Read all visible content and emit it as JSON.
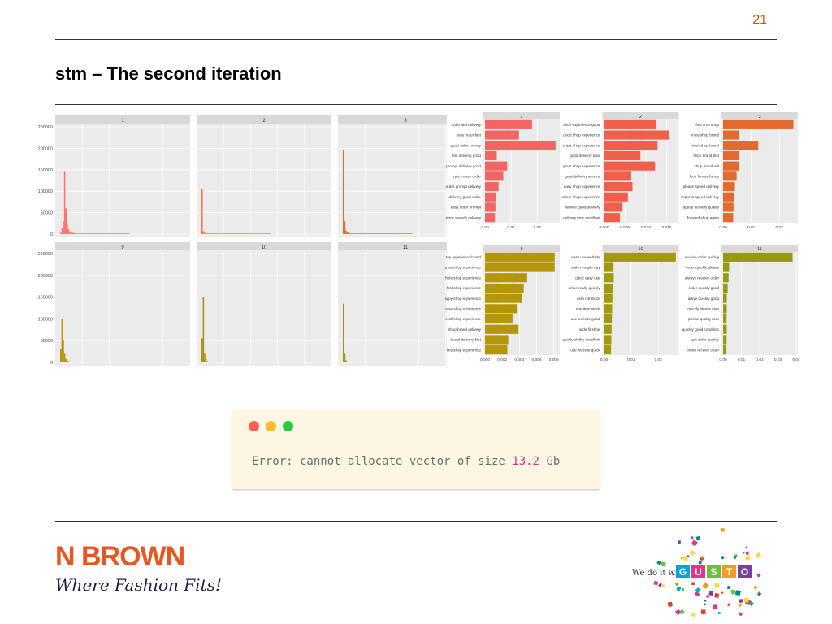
{
  "slide": {
    "number": "21",
    "title": "stm – The second iteration"
  },
  "histograms": {
    "y_ticks": [
      250000,
      200000,
      150000,
      100000,
      50000,
      0
    ],
    "panels": [
      {
        "label": "1",
        "color": "#f8766d",
        "heights": [
          3000,
          15000,
          30000,
          145000,
          60000,
          25000,
          12000,
          6000,
          4000,
          3000,
          2500,
          2000
        ]
      },
      {
        "label": "2",
        "color": "#f37c57",
        "heights": [
          105000,
          7000,
          3000,
          2000,
          1500,
          1500
        ]
      },
      {
        "label": "3",
        "color": "#e8692e",
        "heights": [
          195000,
          30000,
          8000,
          4000,
          3000,
          2000
        ]
      },
      {
        "label": "9",
        "color": "#b7960b",
        "heights": [
          30000,
          100000,
          50000,
          20000,
          8000,
          4000,
          3000,
          2000
        ]
      },
      {
        "label": "10",
        "color": "#a79412",
        "heights": [
          55000,
          150000,
          20000,
          8000,
          3000,
          2000
        ]
      },
      {
        "label": "11",
        "color": "#9b9a10",
        "heights": [
          135000,
          20000,
          5000,
          2000,
          1500
        ]
      }
    ]
  },
  "term_charts": [
    {
      "label": "1",
      "color": "#f46463",
      "xlim": [
        0,
        0.028
      ],
      "ticks": [
        "0.00",
        "0.01",
        "0.02"
      ],
      "tick_values": [
        0,
        0.01,
        0.02
      ],
      "terms": [
        "order fast delivery",
        "easy order fast",
        "good value money",
        "fast delivery good",
        "prompt delivery good",
        "quick easy order",
        "order prompt delivery",
        "delivery good value",
        "easy order prompt",
        "price speedy delivery"
      ],
      "values": [
        0.018,
        0.013,
        0.027,
        0.0045,
        0.0085,
        0.007,
        0.0052,
        0.0043,
        0.004,
        0.0038
      ]
    },
    {
      "label": "2",
      "color": "#ef5f4c",
      "xlim": [
        0,
        0.0175
      ],
      "ticks": [
        "0.000",
        "0.005",
        "0.010",
        "0.015"
      ],
      "tick_values": [
        0,
        0.005,
        0.01,
        0.015
      ],
      "terms": [
        "shop experience good",
        "good shop experience",
        "enjoy shop experience",
        "good delivery time",
        "great shop experience",
        "good delivery service",
        "easy shop experience",
        "online shop experience",
        "service good delivery",
        "delivery time excellent"
      ],
      "values": [
        0.0125,
        0.0155,
        0.0128,
        0.0087,
        0.0122,
        0.0065,
        0.0068,
        0.0057,
        0.0044,
        0.0038
      ]
    },
    {
      "label": "3",
      "color": "#e36a2c",
      "xlim": [
        0,
        0.026
      ],
      "ticks": [
        "0.00",
        "0.01",
        "0.02"
      ],
      "tick_values": [
        0,
        0.01,
        0.02
      ],
      "terms": [
        "first time shop",
        "enjoy shop brand",
        "time shop brand",
        "shop brand first",
        "shop brand will",
        "look forward shop",
        "please speed delivery",
        "impress speed delivery",
        "speed delivery quality",
        "forward shop again"
      ],
      "values": [
        0.025,
        0.0055,
        0.0125,
        0.0058,
        0.0055,
        0.0048,
        0.0042,
        0.004,
        0.0037,
        0.0036
      ]
    },
    {
      "label": "9",
      "color": "#b59608",
      "xlim": [
        0,
        0.0085
      ],
      "ticks": [
        "0.000",
        "0.002",
        "0.004",
        "0.006",
        "0.008"
      ],
      "tick_values": [
        0,
        0.002,
        0.004,
        0.006,
        0.008
      ],
      "terms": [
        "top experience brand",
        "great shop experience",
        "whole shop experience",
        "first shop experience",
        "happy shop experience",
        "ease shop experience",
        "overall shop experience",
        "shop brand delivery",
        "brand delivery fast",
        "find shop experience"
      ],
      "values": [
        0.0081,
        0.0081,
        0.0049,
        0.0045,
        0.0043,
        0.0037,
        0.0032,
        0.0039,
        0.0027,
        0.0026
      ]
    },
    {
      "label": "10",
      "color": "#a39a0b",
      "xlim": [
        0,
        0.027
      ],
      "ticks": [
        "0.00",
        "0.01",
        "0.02"
      ],
      "tick_values": [
        0,
        0.01,
        0.02
      ],
      "terms": [
        "easy use website",
        "within couple day",
        "quick easy use",
        "arrive really quickly",
        "item not stock",
        "one item stock",
        "use website good",
        "wide fit shoe",
        "quality clothe excellent",
        "use website quick"
      ],
      "values": [
        0.0265,
        0.0035,
        0.0036,
        0.0034,
        0.0031,
        0.003,
        0.0029,
        0.0028,
        0.0027,
        0.0026
      ]
    },
    {
      "label": "11",
      "color": "#969a0e",
      "xlim": [
        0,
        0.04
      ],
      "ticks": [
        "0.00",
        "0.01",
        "0.02",
        "0.03",
        "0.04"
      ],
      "tick_values": [
        0,
        0.01,
        0.02,
        0.03,
        0.04
      ],
      "terms": [
        "receive order quickly",
        "order quickly please",
        "always receive order",
        "order quickly good",
        "arrive quickly good",
        "quickly please item",
        "please quality item",
        "quickly good condition",
        "get order quickly",
        "brand receive order"
      ],
      "values": [
        0.038,
        0.0033,
        0.003,
        0.0025,
        0.002,
        0.002,
        0.0019,
        0.002,
        0.0019,
        0.0018
      ]
    }
  ],
  "error_window": {
    "dots": [
      "#ff5f56",
      "#ffbd2e",
      "#27c93f"
    ],
    "text_prefix": "Error: cannot allocate vector of size ",
    "size_value": "13.2",
    "size_unit": " Gb"
  },
  "logos": {
    "left_brand": "N BROWN",
    "left_tagline": "Where Fashion Fits!",
    "right_prefix": "We do it with",
    "right_letters": [
      "G",
      "U",
      "S",
      "T",
      "O"
    ],
    "right_letter_colors": [
      "#00a6d6",
      "#e8318b",
      "#6cbf3c",
      "#f29b1d",
      "#7b3fa0"
    ]
  }
}
